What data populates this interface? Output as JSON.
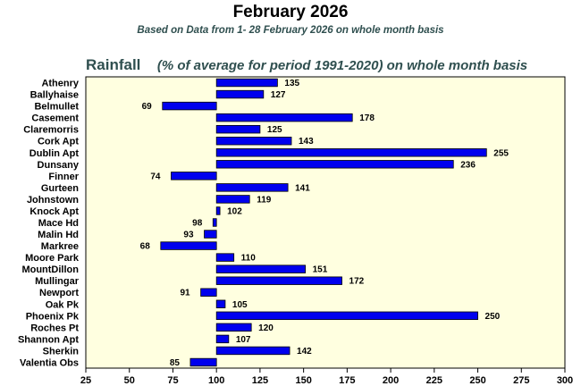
{
  "header": {
    "title": "February 2026",
    "subtitle": "Based on Data from 1- 28 February 2026 on whole month basis",
    "section_title": "Rainfall",
    "section_note": "(% of average for period 1991-2020) on whole month basis"
  },
  "colors": {
    "bar_fill": "#0000ee",
    "bar_stroke": "#000000",
    "plot_background": "#ffffe0"
  },
  "chart_data": {
    "type": "bar",
    "orientation": "horizontal",
    "title": "February 2026",
    "subtitle": "Based on Data from 1- 28 February 2026 on whole month basis",
    "xlabel": "",
    "ylabel": "",
    "baseline": 100,
    "xlim": [
      25,
      300
    ],
    "xticks": [
      25,
      50,
      75,
      100,
      125,
      150,
      175,
      200,
      225,
      250,
      275,
      300
    ],
    "grid": false,
    "categories": [
      "Athenry",
      "Ballyhaise",
      "Belmullet",
      "Casement",
      "Claremorris",
      "Cork Apt",
      "Dublin Apt",
      "Dunsany",
      "Finner",
      "Gurteen",
      "Johnstown",
      "Knock Apt",
      "Mace Hd",
      "Malin Hd",
      "Markree",
      "Moore Park",
      "MountDillon",
      "Mullingar",
      "Newport",
      "Oak Pk",
      "Phoenix Pk",
      "Roches Pt",
      "Shannon Apt",
      "Sherkin",
      "Valentia Obs"
    ],
    "values": [
      135,
      127,
      69,
      178,
      125,
      143,
      255,
      236,
      74,
      141,
      119,
      102,
      98,
      93,
      68,
      110,
      151,
      172,
      91,
      105,
      250,
      120,
      107,
      142,
      85
    ]
  }
}
